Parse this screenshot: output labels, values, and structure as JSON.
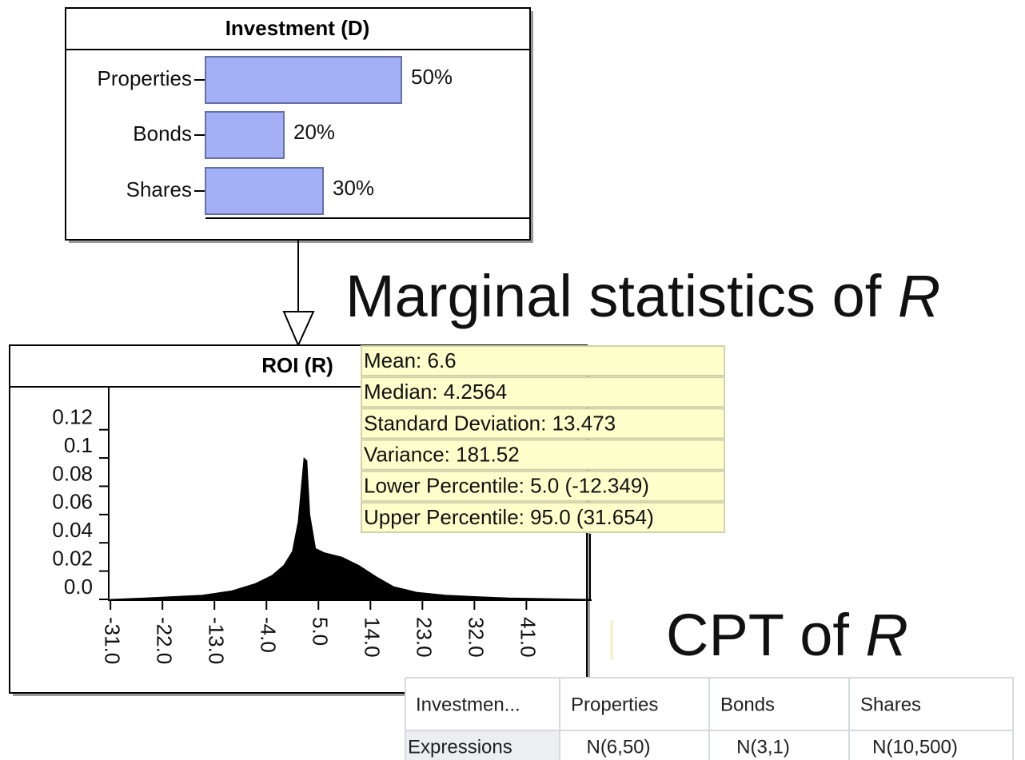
{
  "investment_node": {
    "title": "Investment (D)",
    "categories": [
      "Properties",
      "Bonds",
      "Shares"
    ],
    "values": [
      50,
      20,
      30
    ],
    "value_labels": [
      "50%",
      "20%",
      "30%"
    ],
    "xlim": [
      0,
      100
    ],
    "color": "#a4b0f5"
  },
  "roi_node": {
    "title": "ROI (R)",
    "x": [
      -31,
      -25,
      -20,
      -15,
      -10,
      -6,
      -3,
      -1,
      0.5,
      1.5,
      2.5,
      3,
      3.5,
      4.5,
      6,
      9,
      12,
      15,
      18,
      22,
      27,
      32,
      38,
      45,
      52
    ],
    "values": [
      0,
      0.001,
      0.002,
      0.003,
      0.006,
      0.011,
      0.017,
      0.024,
      0.034,
      0.055,
      0.1,
      0.098,
      0.06,
      0.036,
      0.033,
      0.03,
      0.024,
      0.016,
      0.009,
      0.005,
      0.003,
      0.002,
      0.001,
      0.0005,
      0
    ],
    "xlim": [
      -31.3,
      52.3
    ],
    "ylim": [
      0,
      0.13
    ],
    "xticks": [
      {
        "value": -31,
        "label": "-31.0"
      },
      {
        "value": -22,
        "label": "-22.0"
      },
      {
        "value": -13,
        "label": "-13.0"
      },
      {
        "value": -4,
        "label": "-4.0"
      },
      {
        "value": 5,
        "label": "5.0"
      },
      {
        "value": 14,
        "label": "14.0"
      },
      {
        "value": 23,
        "label": "23.0"
      },
      {
        "value": 32,
        "label": "32.0"
      },
      {
        "value": 41,
        "label": "41.0"
      }
    ],
    "yticks": [
      {
        "value": 0,
        "label": "0.0"
      },
      0.02,
      0.04,
      0.06,
      0.08,
      0.1,
      0.12
    ],
    "color": "#000000"
  },
  "statistics": [
    "Mean: 6.6",
    "Median: 4.2564",
    "Standard Deviation: 13.473",
    "Variance: 181.52",
    "Lower Percentile: 5.0 (-12.349)",
    "Upper Percentile: 95.0 (31.654)"
  ],
  "heading_1": {
    "text": "Marginal statistics of ",
    "variable": "R"
  },
  "heading_2": {
    "text": "CPT of ",
    "variable": "R"
  },
  "cpt_table": {
    "header": [
      "Investmen...",
      "Properties",
      "Bonds",
      "Shares"
    ],
    "rows": [
      [
        "Expressions",
        "N(6,50)",
        "N(3,1)",
        "N(10,500)"
      ]
    ]
  }
}
